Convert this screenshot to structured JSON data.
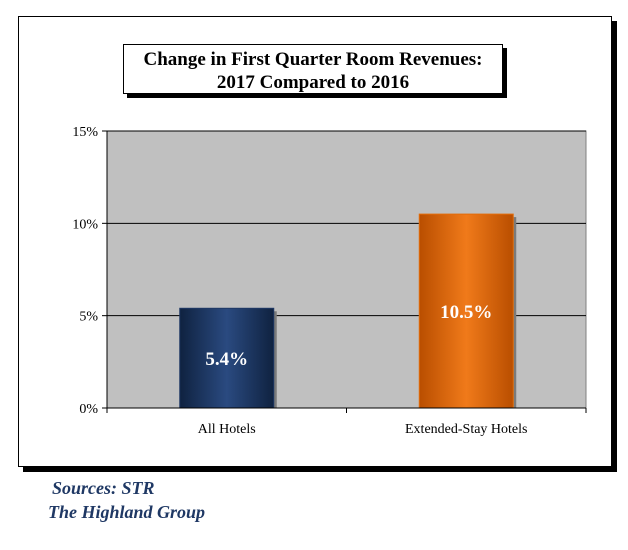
{
  "chart_data": {
    "type": "bar",
    "title": [
      "Change in First Quarter Room Revenues:",
      "2017 Compared to 2016"
    ],
    "categories": [
      "All Hotels",
      "Extended-Stay Hotels"
    ],
    "values": [
      5.4,
      10.5
    ],
    "value_labels": [
      "5.4%",
      "10.5%"
    ],
    "bar_colors": [
      "#1f3864",
      "#e36c09"
    ],
    "y_ticks": [
      0,
      5,
      10,
      15
    ],
    "y_tick_labels": [
      "0%",
      "5%",
      "10%",
      "15%"
    ],
    "ylim": [
      0,
      15
    ],
    "grid": true,
    "plot_background": "#c0c0c0",
    "legend": "none"
  },
  "sources": {
    "line1": "Sources: STR",
    "line2": "The Highland Group"
  }
}
